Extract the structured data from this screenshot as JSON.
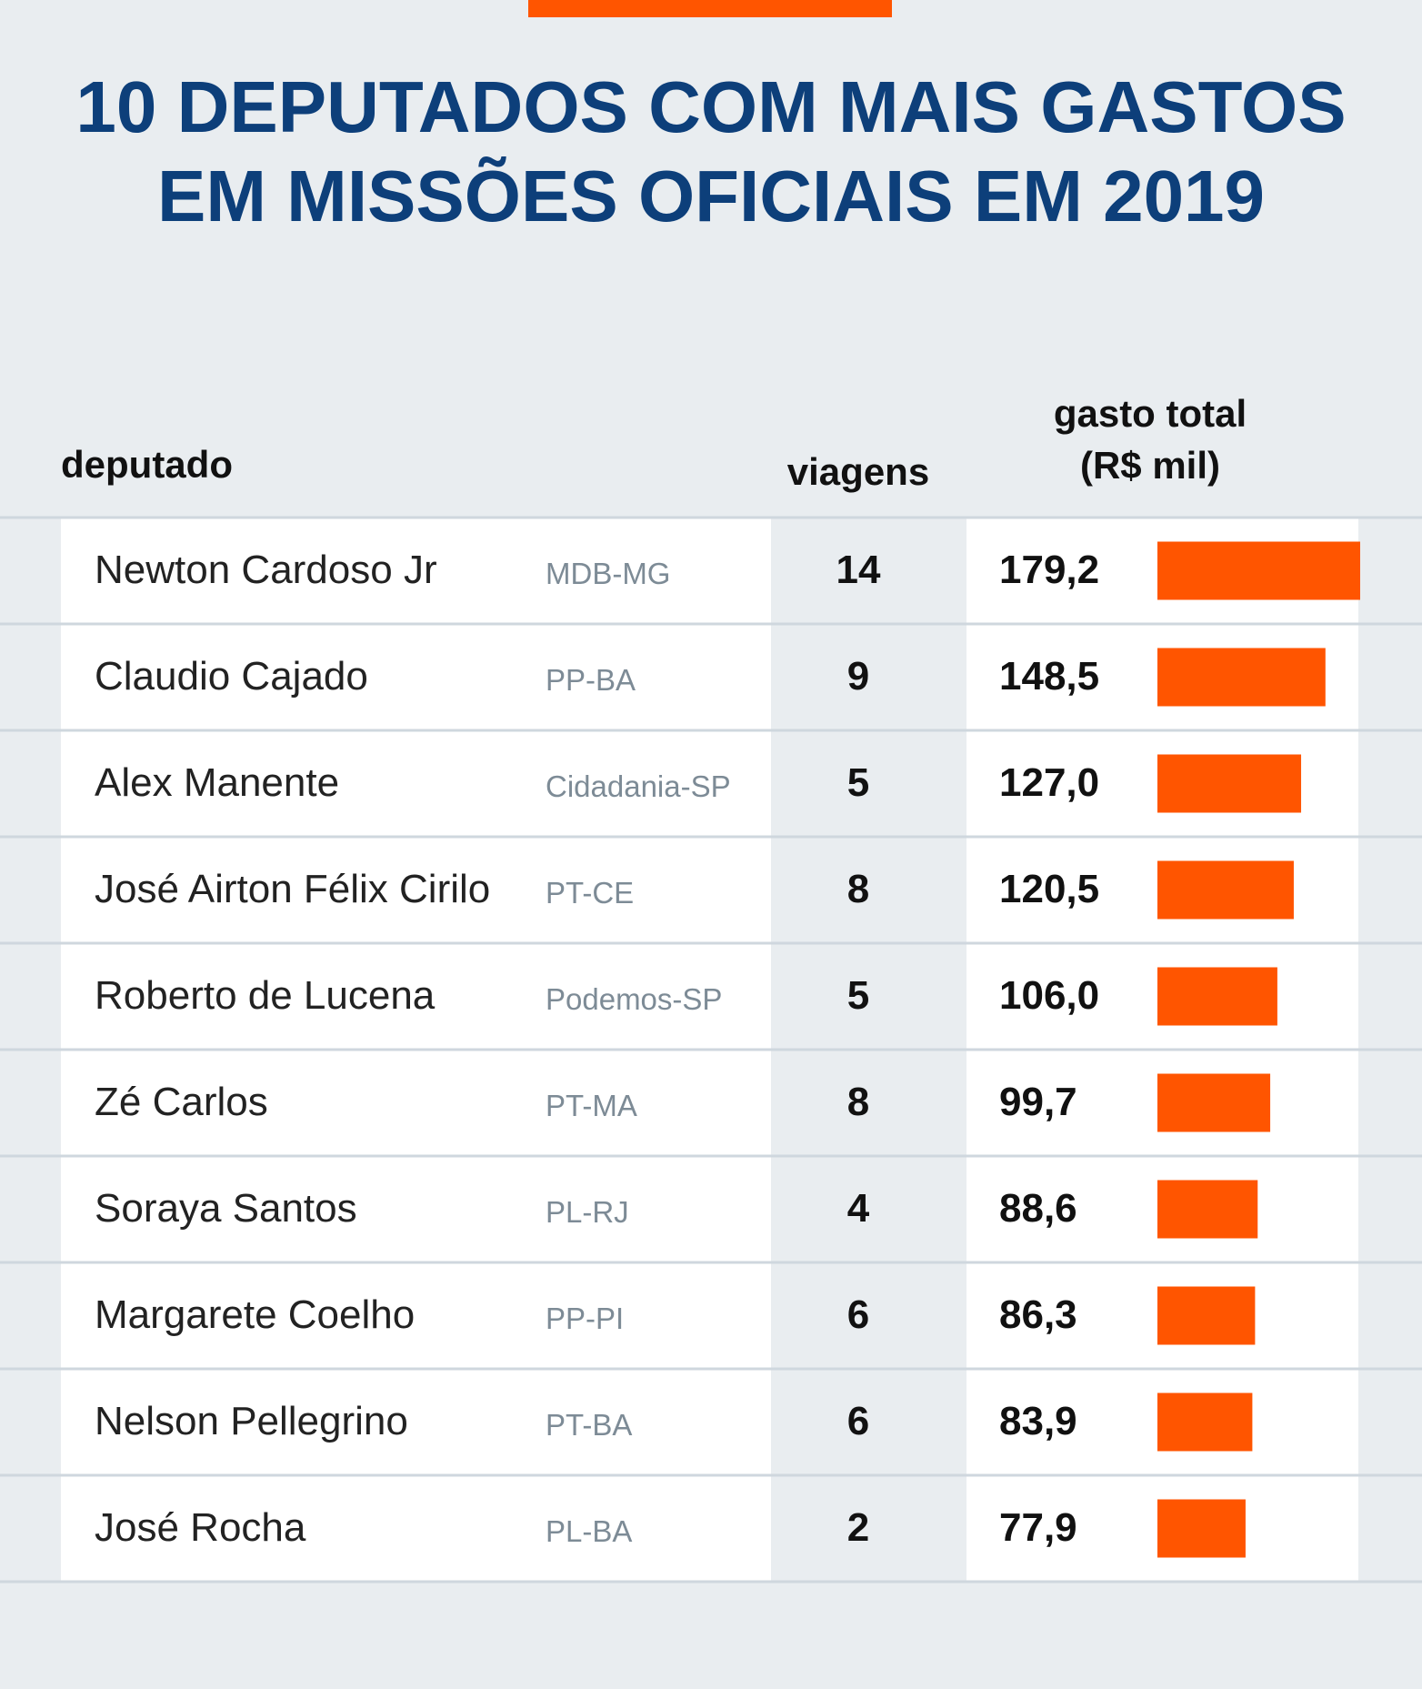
{
  "chart_data": {
    "type": "bar",
    "title_lines": [
      "10 DEPUTADOS COM MAIS GASTOS",
      "EM MISSÕES OFICIAIS EM 2019"
    ],
    "headers": {
      "name": "deputado",
      "trips": "viagens",
      "spend": [
        "gasto total",
        "(R$ mil)"
      ]
    },
    "categories": [
      "Newton Cardoso Jr",
      "Claudio Cajado",
      "Alex Manente",
      "José Airton Félix Cirilo",
      "Roberto de Lucena",
      "Zé Carlos",
      "Soraya Santos",
      "Margarete Coelho",
      "Nelson Pellegrino",
      "José Rocha"
    ],
    "parties": [
      "MDB-MG",
      "PP-BA",
      "Cidadania-SP",
      "PT-CE",
      "Podemos-SP",
      "PT-MA",
      "PL-RJ",
      "PP-PI",
      "PT-BA",
      "PL-BA"
    ],
    "trips": [
      14,
      9,
      5,
      8,
      5,
      8,
      4,
      6,
      6,
      2
    ],
    "values": [
      179.2,
      148.5,
      127.0,
      120.5,
      106.0,
      99.7,
      88.6,
      86.3,
      83.9,
      77.9
    ],
    "value_labels": [
      "179,2",
      "148,5",
      "127,0",
      "120,5",
      "106,0",
      "99,7",
      "88,6",
      "86,3",
      "83,9",
      "77,9"
    ],
    "color": "#ff5500"
  }
}
